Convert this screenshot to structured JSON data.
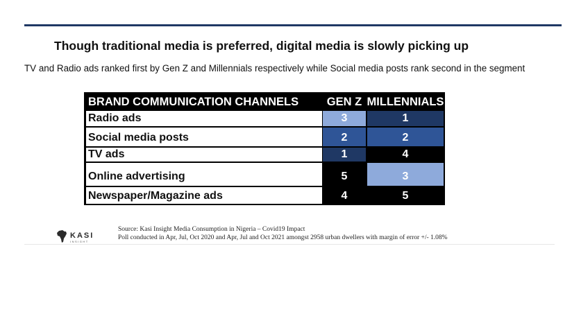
{
  "headline": "Though traditional media is preferred, digital media is slowly picking up",
  "subheadline": "TV and Radio ads ranked first by Gen Z and Millennials respectively while Social media posts rank second in the segment",
  "table": {
    "headers": [
      "BRAND COMMUNICATION CHANNELS",
      "GEN Z",
      "MILLENNIALS"
    ],
    "rows": [
      {
        "channel": "Radio ads",
        "gen_z": "3",
        "millennials": "1",
        "gen_z_color": "#8eaadb",
        "millennials_color": "#1f3864"
      },
      {
        "channel": "Social media posts",
        "gen_z": "2",
        "millennials": "2",
        "gen_z_color": "#2f5597",
        "millennials_color": "#2f5597"
      },
      {
        "channel": "TV ads",
        "gen_z": "1",
        "millennials": "4",
        "gen_z_color": "#1f3864",
        "millennials_color": "#000000"
      },
      {
        "channel": "Online advertising",
        "gen_z": "5",
        "millennials": "3",
        "gen_z_color": "#000000",
        "millennials_color": "#8eaadb"
      },
      {
        "channel": "Newspaper/Magazine ads",
        "gen_z": "4",
        "millennials": "5",
        "gen_z_color": "#000000",
        "millennials_color": "#000000"
      }
    ]
  },
  "logo": {
    "brand": "KASI",
    "tagline": "INSIGHT"
  },
  "source": {
    "line1": "Source: Kasi Insight  Media Consumption in Nigeria – Covid19 Impact",
    "line2": "Poll conducted in Apr, Jul, Oct 2020 and Apr, Jul and Oct 2021 amongst 2958 urban dwellers with margin of error +/- 1.08%"
  }
}
